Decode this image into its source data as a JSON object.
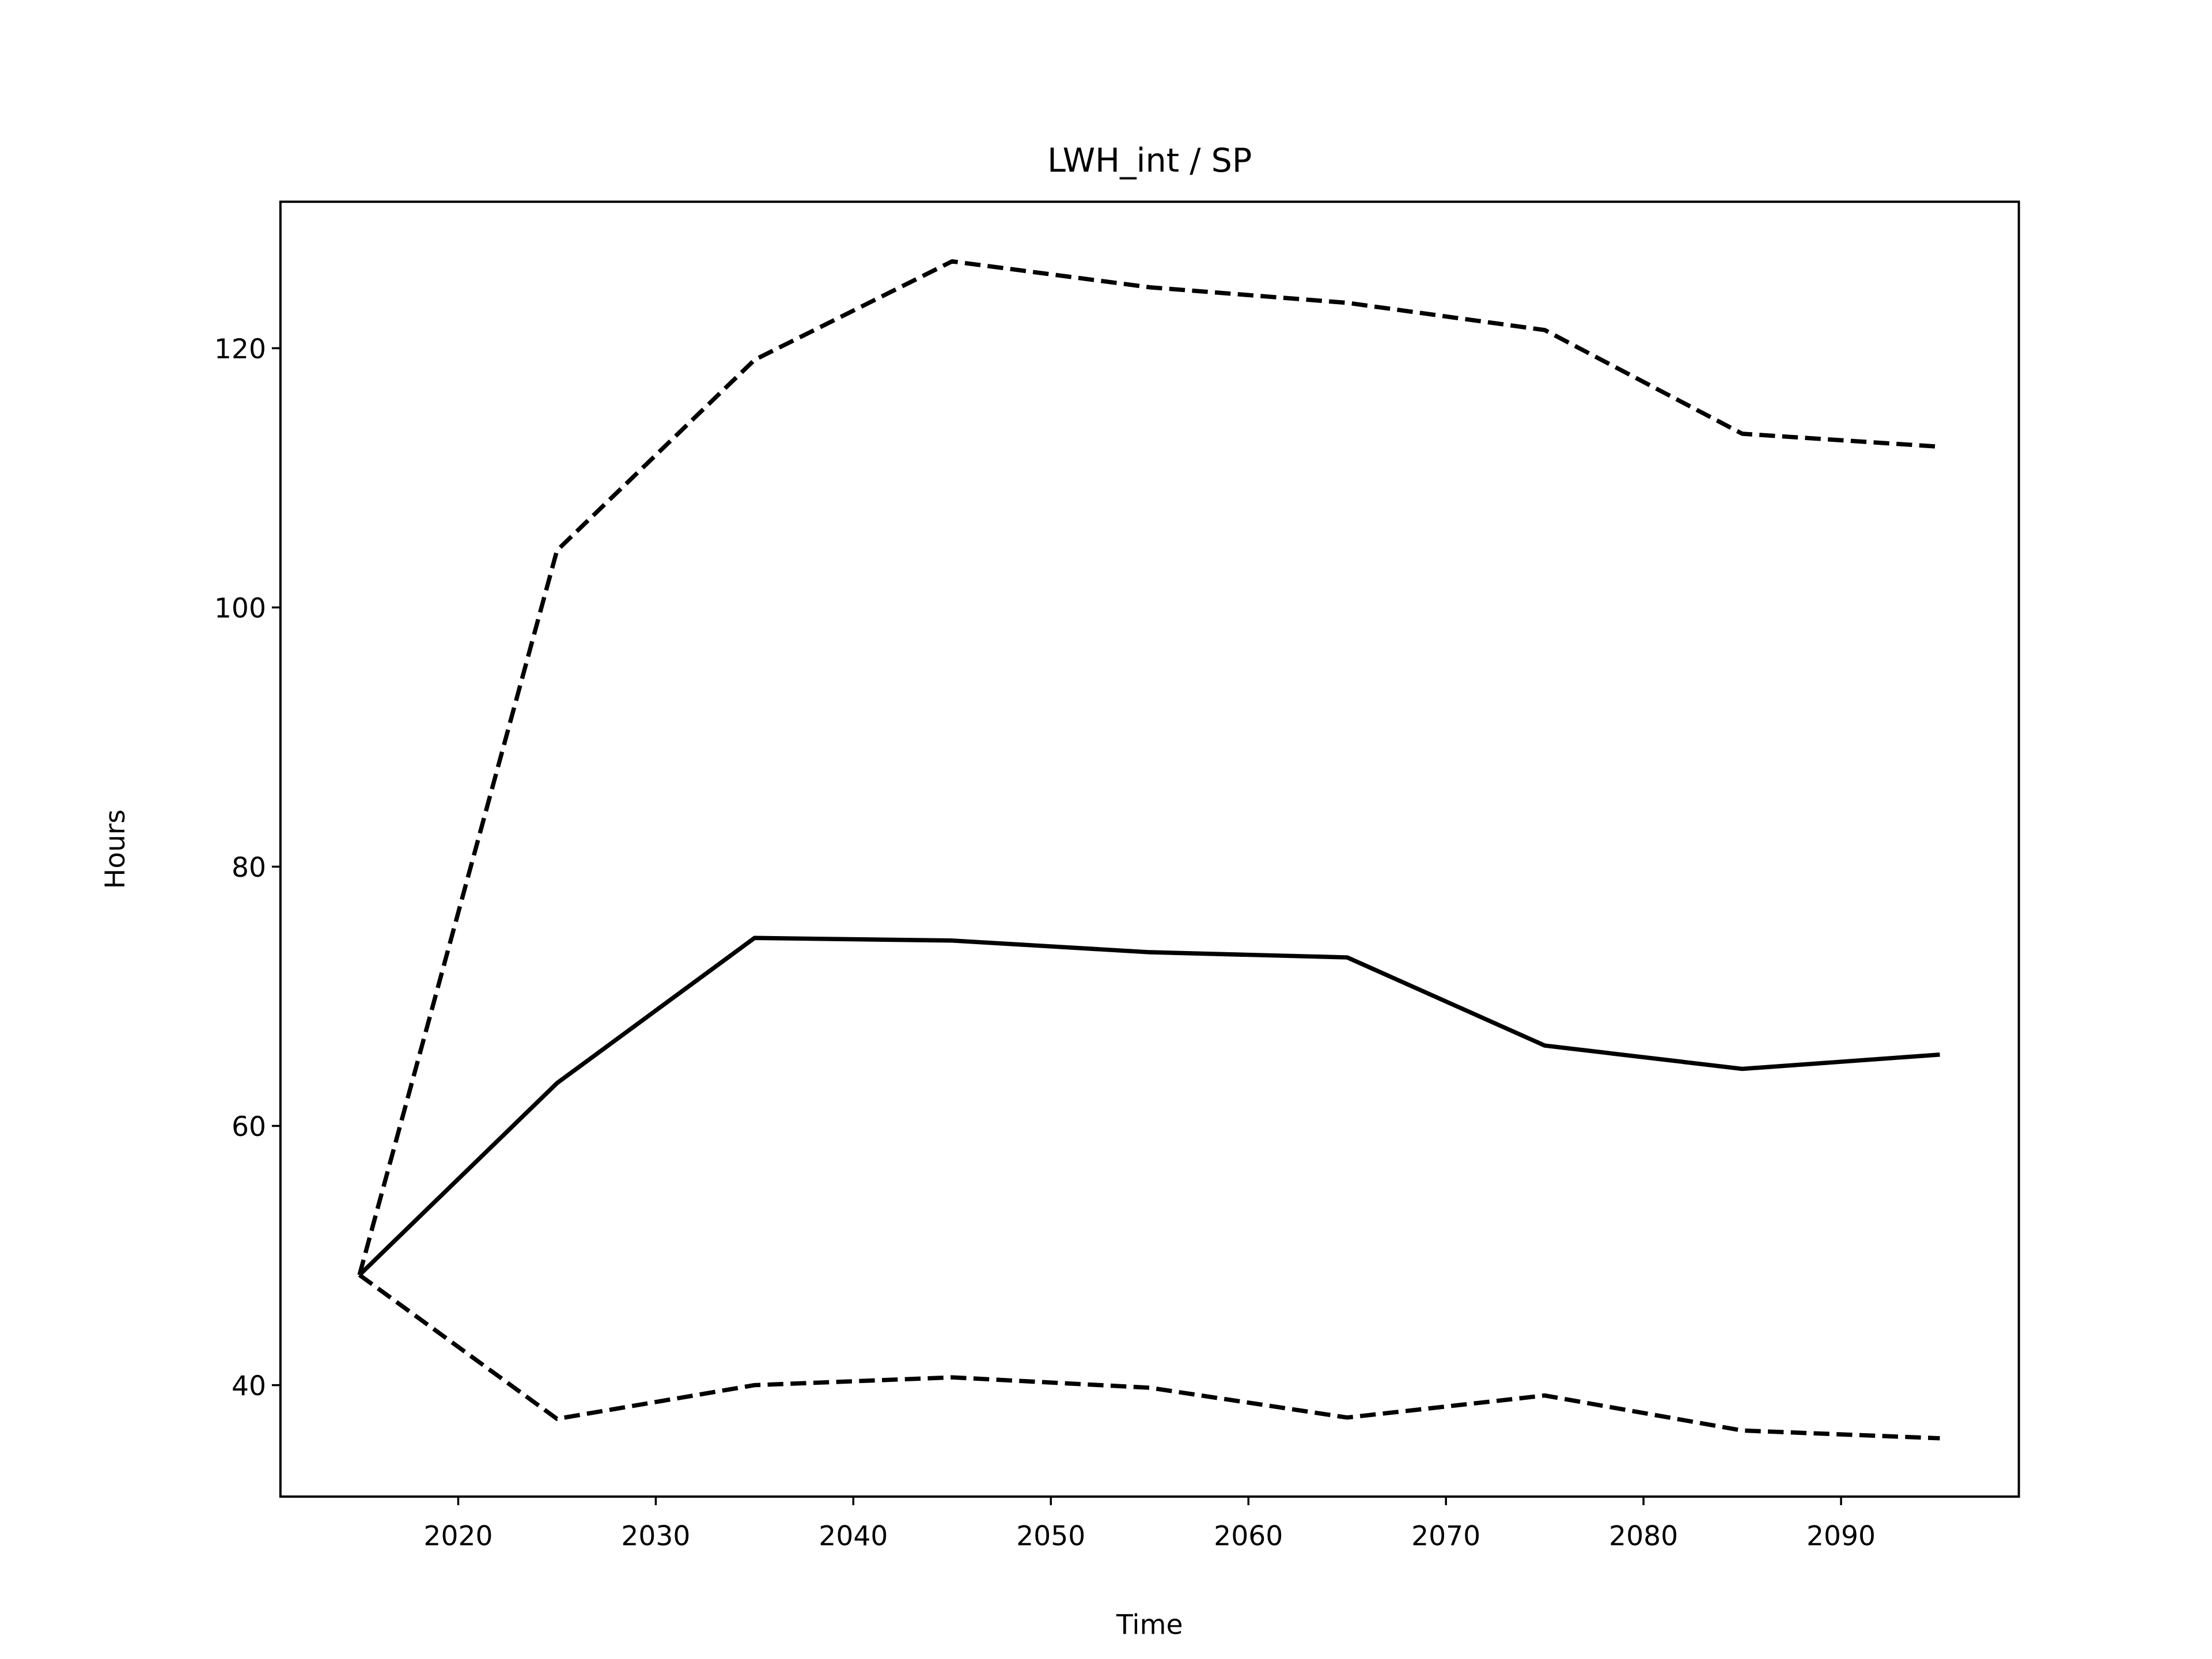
{
  "chart_data": {
    "type": "line",
    "title": "LWH_int / SP",
    "xlabel": "Time",
    "ylabel": "Hours",
    "x": [
      2015,
      2025,
      2035,
      2045,
      2055,
      2065,
      2075,
      2085,
      2095
    ],
    "series": [
      {
        "color": "#000000",
        "dash": false,
        "values": [
          48.5,
          63.3,
          74.5,
          74.3,
          73.4,
          73.0,
          66.2,
          64.4,
          65.5
        ]
      },
      {
        "color": "#000000",
        "dash": true,
        "values": [
          48.5,
          104.4,
          119.1,
          126.7,
          124.7,
          123.5,
          121.4,
          113.4,
          112.4
        ]
      },
      {
        "color": "#000000",
        "dash": true,
        "values": [
          48.5,
          37.4,
          40.0,
          40.6,
          39.8,
          37.5,
          39.2,
          36.5,
          35.9
        ]
      }
    ],
    "xlim": [
      2011,
      2099
    ],
    "xticks": [
      2020,
      2030,
      2040,
      2050,
      2060,
      2070,
      2080,
      2090
    ],
    "ylim": [
      31.4,
      131.3
    ],
    "yticks": [
      40,
      60,
      80,
      100,
      120
    ],
    "grid": false
  }
}
